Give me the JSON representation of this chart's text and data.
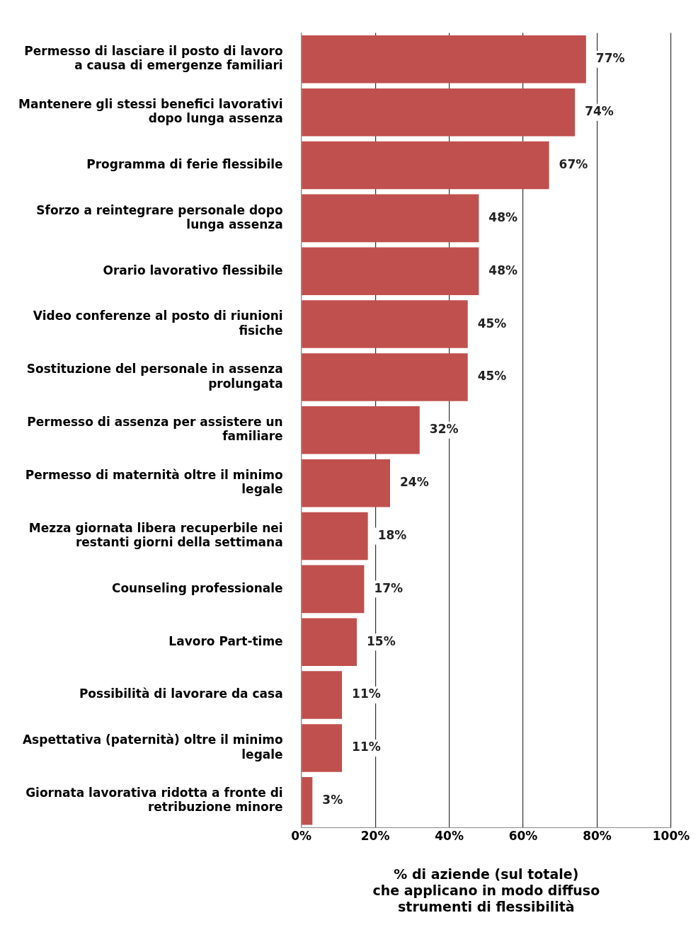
{
  "chart_data": {
    "type": "bar",
    "orientation": "horizontal",
    "xlabel": "% di aziende (sul totale)\nche applicano in modo diffuso\nstrumenti di flessibilità",
    "categories": [
      "Permesso di lasciare il posto di lavoro a causa di emergenze familiari",
      "Mantenere gli stessi benefici lavorativi dopo lunga assenza",
      "Programma di ferie flessibile",
      "Sforzo a reintegrare personale dopo lunga assenza",
      "Orario lavorativo flessibile",
      "Video conferenze al posto di riunioni fisiche",
      "Sostituzione del personale in assenza prolungata",
      "Permesso di assenza per assistere un familiare",
      "Permesso di maternità oltre il minimo legale",
      "Mezza giornata libera recuperbile nei restanti giorni della settimana",
      "Counseling professionale",
      "Lavoro Part-time",
      "Possibilità di lavorare da casa",
      "Aspettativa (paternità) oltre il minimo legale",
      "Giornata lavorativa ridotta a fronte di retribuzione minore"
    ],
    "values": [
      77,
      74,
      67,
      48,
      48,
      45,
      45,
      32,
      24,
      18,
      17,
      15,
      11,
      11,
      3
    ],
    "value_labels": [
      "77%",
      "74%",
      "67%",
      "48%",
      "48%",
      "45%",
      "45%",
      "32%",
      "24%",
      "18%",
      "17%",
      "15%",
      "11%",
      "11%",
      "3%"
    ],
    "color": "#c0504d",
    "xlim": [
      0,
      100
    ],
    "xticks": [
      {
        "value": 0,
        "label": "0%"
      },
      {
        "value": 20,
        "label": "20%"
      },
      {
        "value": 40,
        "label": "40%"
      },
      {
        "value": 60,
        "label": "60%"
      },
      {
        "value": 80,
        "label": "80%"
      },
      {
        "value": 100,
        "label": "100%"
      }
    ],
    "grid": "x",
    "legend": false
  }
}
